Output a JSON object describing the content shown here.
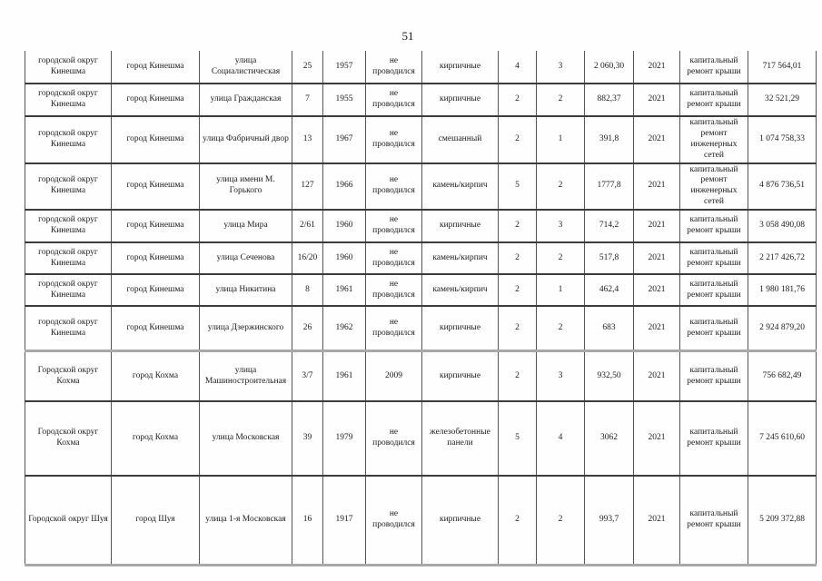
{
  "page": {
    "number": "51"
  },
  "table": {
    "rows": [
      {
        "cells": [
          "городской округ Кинешма",
          "город Кинешма",
          "улица Социалистическая",
          "25",
          "1957",
          "не проводился",
          "кирпичные",
          "4",
          "3",
          "2 060,30",
          "2021",
          "капитальный ремонт крыши",
          "717 564,01"
        ]
      },
      {
        "cells": [
          "городской округ Кинешма",
          "город Кинешма",
          "улица Гражданская",
          "7",
          "1955",
          "не проводился",
          "кирпичные",
          "2",
          "2",
          "882,37",
          "2021",
          "капитальный ремонт крыши",
          "32 521,29"
        ]
      },
      {
        "cells": [
          "городской округ Кинешма",
          "город Кинешма",
          "улица Фабричный двор",
          "13",
          "1967",
          "не проводился",
          "смешанный",
          "2",
          "1",
          "391,8",
          "2021",
          "капитальный ремонт инженерных сетей",
          "1 074 758,33"
        ]
      },
      {
        "cells": [
          "городской округ Кинешма",
          "город Кинешма",
          "улица имени М. Горького",
          "127",
          "1966",
          "не проводился",
          "камень/кирпич",
          "5",
          "2",
          "1777,8",
          "2021",
          "капитальный ремонт инженерных сетей",
          "4 876 736,51"
        ]
      },
      {
        "cells": [
          "городской округ Кинешма",
          "город Кинешма",
          "улица Мира",
          "2/61",
          "1960",
          "не проводился",
          "кирпичные",
          "2",
          "3",
          "714,2",
          "2021",
          "капитальный ремонт крыши",
          "3 058 490,08"
        ]
      },
      {
        "cells": [
          "городской округ Кинешма",
          "город Кинешма",
          "улица Сеченова",
          "16/20",
          "1960",
          "не проводился",
          "камень/кирпич",
          "2",
          "2",
          "517,8",
          "2021",
          "капитальный ремонт крыши",
          "2 217 426,72"
        ]
      },
      {
        "cells": [
          "городской округ Кинешма",
          "город Кинешма",
          "улица Никитина",
          "8",
          "1961",
          "не проводился",
          "камень/кирпич",
          "2",
          "1",
          "462,4",
          "2021",
          "капитальный ремонт крыши",
          "1 980 181,76"
        ]
      },
      {
        "cells": [
          "городской округ Кинешма",
          "город Кинешма",
          "улица Дзержинского",
          "26",
          "1962",
          "не проводился",
          "кирпичные",
          "2",
          "2",
          "683",
          "2021",
          "капитальный ремонт крыши",
          "2 924 879,20"
        ]
      },
      {
        "cells": [
          "Городской округ Кохма",
          "город Кохма",
          "улица Машиностроительная",
          "3/7",
          "1961",
          "2009",
          "кирпичные",
          "2",
          "3",
          "932,50",
          "2021",
          "капитальный ремонт крыши",
          "756 682,49"
        ]
      },
      {
        "cells": [
          "Городской округ Кохма",
          "город Кохма",
          "улица Московская",
          "39",
          "1979",
          "не проводился",
          "железобетонные панели",
          "5",
          "4",
          "3062",
          "2021",
          "капитальный ремонт крыши",
          "7 245 610,60"
        ]
      },
      {
        "cells": [
          "Городской округ Шуя",
          "город Шуя",
          "улица 1-я Московская",
          "16",
          "1917",
          "не проводился",
          "кирпичные",
          "2",
          "2",
          "993,7",
          "2021",
          "капитальный ремонт крыши",
          "5 209 372,88"
        ]
      }
    ]
  }
}
